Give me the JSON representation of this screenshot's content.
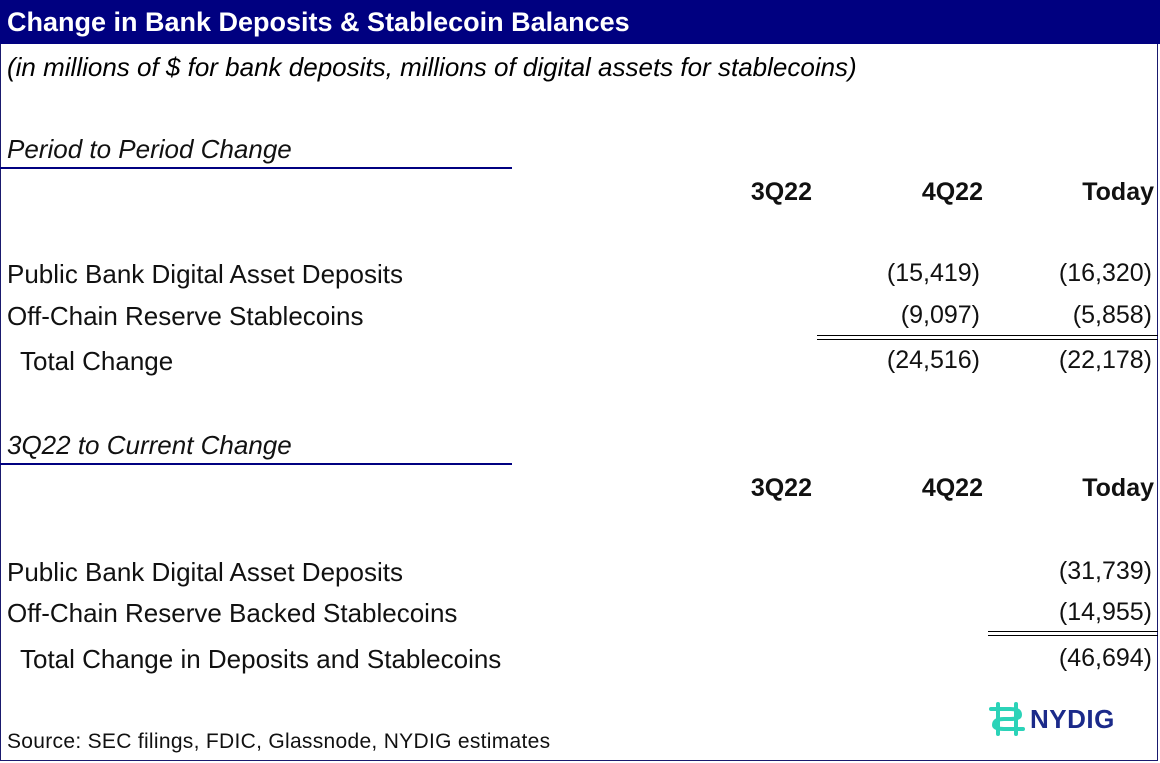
{
  "header": {
    "title": "Change in Bank Deposits & Stablecoin Balances",
    "subtitle": "(in millions of $ for bank deposits, millions of digital assets for stablecoins)"
  },
  "columns": [
    "3Q22",
    "4Q22",
    "Today"
  ],
  "section1": {
    "title": "Period to Period Change",
    "rows": [
      {
        "label": "Public Bank Digital Asset Deposits",
        "q3": "",
        "q4": "(15,419)",
        "today": "(16,320)"
      },
      {
        "label": "Off-Chain Reserve Stablecoins",
        "q3": "",
        "q4": "(9,097)",
        "today": "(5,858)"
      }
    ],
    "total": {
      "label": "Total Change",
      "q3": "",
      "q4": "(24,516)",
      "today": "(22,178)"
    }
  },
  "section2": {
    "title": "3Q22 to Current Change",
    "rows": [
      {
        "label": "Public Bank Digital Asset Deposits",
        "q3": "",
        "q4": "",
        "today": "(31,739)"
      },
      {
        "label": "Off-Chain Reserve Backed Stablecoins",
        "q3": "",
        "q4": "",
        "today": "(14,955)"
      }
    ],
    "total": {
      "label": "Total Change in Deposits and Stablecoins",
      "q3": "",
      "q4": "",
      "today": "(46,694)"
    }
  },
  "footer": {
    "source": "Source:  SEC filings, FDIC, Glassnode, NYDIG estimates",
    "logo_text": "NYDIG",
    "logo_icon": "nydig-logo-icon"
  },
  "colors": {
    "header_bg": "#000080",
    "logo_teal": "#2bd3b8",
    "logo_text": "#1b2a8a"
  }
}
